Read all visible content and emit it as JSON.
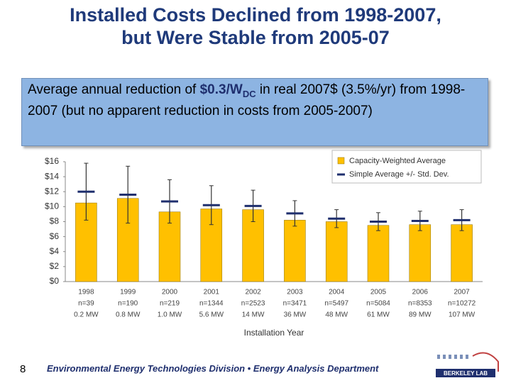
{
  "title_lines": [
    "Installed Costs Declined from 1998-2007,",
    "but Were Stable from 2005-07"
  ],
  "callout": {
    "before": "Average annual reduction of ",
    "highlight": "$0.3/W",
    "subscript": "DC",
    "after": " in real 2007$ (3.5%/yr) from 1998-2007 (but no apparent reduction in costs from 2005-2007)"
  },
  "chart_data": {
    "type": "bar",
    "x_label": "Installation Year",
    "categories": [
      "1998",
      "1999",
      "2000",
      "2001",
      "2002",
      "2003",
      "2004",
      "2005",
      "2006",
      "2007"
    ],
    "sample_sizes": [
      "n=39",
      "n=190",
      "n=219",
      "n=1344",
      "n=2523",
      "n=3471",
      "n=5497",
      "n=5084",
      "n=8353",
      "n=10272"
    ],
    "capacities": [
      "0.2 MW",
      "0.8 MW",
      "1.0 MW",
      "5.6 MW",
      "14 MW",
      "36 MW",
      "48 MW",
      "61 MW",
      "89 MW",
      "107 MW"
    ],
    "series": [
      {
        "name": "Capacity-Weighted Average",
        "color": "#ffc000",
        "values": [
          10.5,
          11.1,
          9.3,
          9.7,
          9.6,
          8.2,
          8.0,
          7.5,
          7.6,
          7.6
        ]
      },
      {
        "name": "Simple Average +/- Std. Dev.",
        "color": "#1f2f6e",
        "values": [
          12.0,
          11.6,
          10.7,
          10.2,
          10.1,
          9.1,
          8.4,
          8.0,
          8.1,
          8.2
        ],
        "errors": [
          3.8,
          3.8,
          2.9,
          2.6,
          2.1,
          1.7,
          1.2,
          1.2,
          1.3,
          1.4
        ]
      }
    ],
    "ylim": [
      0,
      16
    ],
    "yticks": [
      {
        "value": 0,
        "label": "$0"
      },
      {
        "value": 2,
        "label": "$2"
      },
      {
        "value": 4,
        "label": "$4"
      },
      {
        "value": 6,
        "label": "$6"
      },
      {
        "value": 8,
        "label": "$8"
      },
      {
        "value": 10,
        "label": "$10"
      },
      {
        "value": 12,
        "label": "$12"
      },
      {
        "value": 14,
        "label": "$14"
      },
      {
        "value": 16,
        "label": "$16"
      }
    ],
    "legend_position": "upper right"
  },
  "footer": {
    "page_number": "8",
    "text": "Environmental Energy Technologies Division • Energy Analysis Department",
    "logo_text": "BERKELEY LAB"
  }
}
